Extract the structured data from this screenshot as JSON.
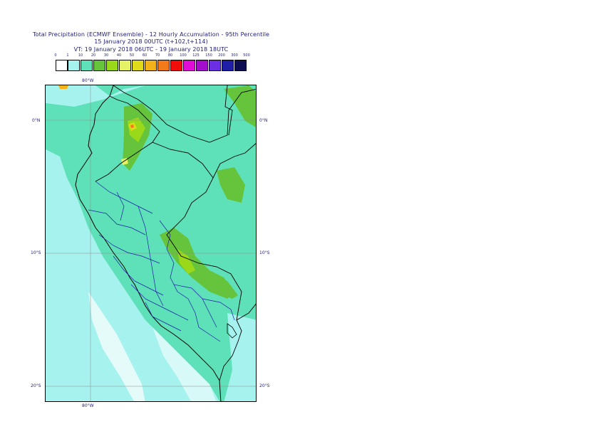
{
  "title": {
    "line1": "Total Precipitation (ECMWF Ensemble) - 12 Hourly Accumulation - 95th Percentile",
    "line2": "15 January 2018 00UTC (t+102,t+114)",
    "line3": "VT: 19 January 2018 06UTC - 19 January 2018 18UTC"
  },
  "legend": {
    "ticks": [
      "0",
      "1",
      "10",
      "20",
      "30",
      "40",
      "50",
      "60",
      "70",
      "80",
      "100",
      "125",
      "150",
      "200",
      "300",
      "500"
    ],
    "colors": [
      "#ffffff",
      "#a6f2ee",
      "#5ee0b8",
      "#66c43c",
      "#99d91a",
      "#e6f266",
      "#e0db1a",
      "#f2b21a",
      "#f27a1a",
      "#f20d0d",
      "#e00dd9",
      "#a30dcc",
      "#6b2ee0",
      "#1e1ea6",
      "#0d0d52"
    ]
  },
  "axes": {
    "top_lon": "80°W",
    "bottom_lon": "80°W",
    "lat_0": "0°N",
    "lat_10": "10°S",
    "lat_20": "20°S"
  }
}
